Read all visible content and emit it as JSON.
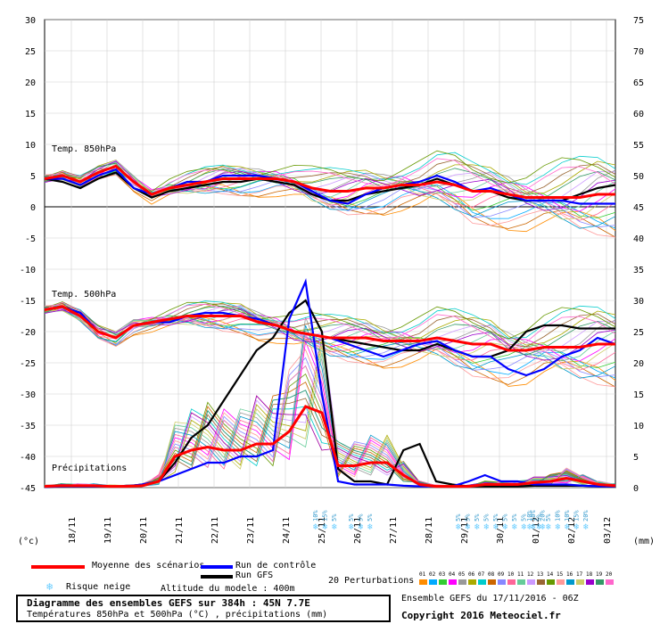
{
  "chart_data": {
    "type": "line",
    "x_dates": [
      "18/11",
      "19/11",
      "20/11",
      "21/11",
      "22/11",
      "23/11",
      "24/11",
      "25/11",
      "26/11",
      "27/11",
      "28/11",
      "29/11",
      "30/11",
      "01/12",
      "02/12",
      "03/12"
    ],
    "left_axis_unit": "(°c)",
    "right_axis_unit": "(mm)",
    "left_ticks": [
      30,
      25,
      20,
      15,
      10,
      5,
      0,
      -5,
      -10,
      -15,
      -20,
      -25,
      -30,
      -35,
      -40,
      -45
    ],
    "right_ticks": [
      75,
      70,
      65,
      60,
      55,
      50,
      45,
      40,
      35,
      30,
      25,
      20,
      15,
      10,
      5,
      0
    ],
    "ylim_temp": [
      -45,
      30
    ],
    "ylim_precip": [
      0,
      75
    ],
    "panel_labels": {
      "t850": "Temp. 850hPa",
      "t500": "Temp. 500hPa",
      "precip": "Précipitations"
    },
    "x_hours": [
      0,
      12,
      24,
      36,
      48,
      60,
      72,
      84,
      96,
      108,
      120,
      132,
      144,
      156,
      168,
      180,
      192,
      204,
      216,
      228,
      240,
      252,
      264,
      276,
      288,
      300,
      312,
      324,
      336,
      348,
      360,
      372,
      384
    ],
    "series": [
      {
        "name": "Moyenne des scénarios",
        "color": "#ff0000",
        "role": "mean",
        "t850": [
          4.5,
          5,
          4,
          5.5,
          6.5,
          4,
          2,
          3,
          3.5,
          4,
          4.5,
          4.5,
          4.5,
          4.5,
          4,
          3,
          2.5,
          2.5,
          3,
          3,
          3.5,
          3.5,
          4,
          3.5,
          2.5,
          2.5,
          2,
          1.5,
          1.5,
          1.5,
          1.5,
          2,
          2
        ],
        "t500": [
          -16.5,
          -16,
          -17.5,
          -20,
          -21,
          -19,
          -18.5,
          -18,
          -17.5,
          -17.5,
          -17.5,
          -17.5,
          -18.5,
          -19,
          -20,
          -20.5,
          -21,
          -21,
          -21,
          -21.5,
          -21.5,
          -21.5,
          -21,
          -21.5,
          -22,
          -22,
          -23,
          -23,
          -22.5,
          -22.5,
          -22.5,
          -22,
          -22
        ],
        "precip": [
          0.2,
          0.3,
          0.3,
          0.3,
          0.2,
          0.2,
          0.3,
          1,
          5,
          6,
          6.5,
          6,
          6,
          7,
          7,
          9,
          13,
          12,
          3.5,
          3.5,
          4,
          4,
          2,
          0.5,
          0.2,
          0.2,
          0.2,
          0.5,
          0.5,
          0.5,
          0.8,
          1,
          1.5,
          1,
          0.5,
          0.3
        ]
      },
      {
        "name": "Run de contrôle",
        "color": "#0000ff",
        "role": "control",
        "t850": [
          4.5,
          4.5,
          3.5,
          5,
          6,
          3,
          2,
          3,
          4,
          4,
          5,
          5,
          5,
          4.5,
          4,
          2.5,
          1,
          0.5,
          2,
          3,
          3.5,
          4,
          5,
          4,
          2.5,
          3,
          2,
          1,
          1,
          1,
          0.5,
          0.5,
          0.5
        ],
        "t500": [
          -16.5,
          -16,
          -17,
          -20,
          -21,
          -19,
          -18.5,
          -18.5,
          -17.5,
          -17,
          -17,
          -17.5,
          -18,
          -19,
          -20,
          -20.5,
          -21,
          -22,
          -23,
          -24,
          -23,
          -22,
          -21.5,
          -23,
          -24,
          -24,
          -26,
          -27,
          -26,
          -24,
          -23,
          -21,
          -22
        ],
        "precip": [
          0.1,
          0.2,
          0.2,
          0.2,
          0.2,
          0.2,
          0.5,
          1,
          2,
          3,
          4,
          4,
          5,
          5,
          6,
          27,
          33,
          15,
          1,
          0.5,
          0.5,
          0.5,
          0.3,
          0.2,
          0.2,
          0.2,
          1,
          2,
          1,
          1,
          0.5,
          0.5,
          0.5,
          0.3,
          0.2,
          0.2
        ]
      },
      {
        "name": "Run GFS",
        "color": "#000000",
        "role": "gfs",
        "t850": [
          4.5,
          4,
          3,
          4.5,
          5.5,
          3,
          1.5,
          2.5,
          3,
          3.5,
          4,
          4,
          4.5,
          4,
          3.5,
          2,
          1,
          1,
          2,
          2.5,
          3,
          3.5,
          4.5,
          3.5,
          2.5,
          2.5,
          1.5,
          1,
          1,
          1,
          2,
          3,
          3.5
        ],
        "t500": [
          -16.5,
          -16,
          -17,
          -20,
          -21,
          -19,
          -18.5,
          -18,
          -17.5,
          -17.5,
          -17.5,
          -17.5,
          -18.5,
          -19,
          -20,
          -20.5,
          -21,
          -21.5,
          -22,
          -22.5,
          -23,
          -23,
          -22,
          -23,
          -24,
          -24,
          -23,
          -20,
          -19,
          -19,
          -19.5,
          -19.5,
          -19.5
        ],
        "precip": [
          0.1,
          0.2,
          0.2,
          0.2,
          0.2,
          0.2,
          0.5,
          1,
          4,
          8,
          10,
          14,
          18,
          22,
          24,
          28,
          30,
          25,
          3,
          1,
          1,
          0.5,
          6,
          7,
          1,
          0.5,
          0.2,
          0.2,
          0.2,
          0.2,
          0.3,
          0.3,
          0.3,
          0.3,
          0.2,
          0.2
        ]
      }
    ],
    "perturbation_colors": [
      "#ff8c00",
      "#00aaff",
      "#33cc33",
      "#ff00ff",
      "#999999",
      "#aaaa00",
      "#00cccc",
      "#cc6600",
      "#8888ff",
      "#ff6699",
      "#66cc99",
      "#cc99ff",
      "#996633",
      "#669900",
      "#ff9999",
      "#0099cc",
      "#cccc66",
      "#9900cc",
      "#339966",
      "#ff66cc"
    ],
    "snow_risk": [
      {
        "date_index": 7,
        "values": [
          "10%",
          "15%",
          "5%"
        ]
      },
      {
        "date_index": 8,
        "values": [
          "5%",
          "5%",
          "5%"
        ]
      },
      {
        "date_index": 11,
        "values": [
          "5%",
          "5%",
          "5%",
          "5%",
          "5%",
          "5%",
          "5%",
          "5%",
          "10%",
          "20%"
        ]
      },
      {
        "date_index": 13,
        "values": [
          "10%",
          "5%",
          "5%",
          "10%",
          "10%",
          "15%",
          "20%"
        ]
      }
    ],
    "grid": true
  },
  "legend": {
    "mean": "Moyenne des scénarios",
    "control": "Run de contrôle",
    "gfs": "Run GFS",
    "snow": "Risque neige",
    "altitude": "Altitude du modele : 400m",
    "perturbations": "20 Perturbations",
    "pert_numbers": [
      "01",
      "02",
      "03",
      "04",
      "05",
      "06",
      "07",
      "08",
      "09",
      "10",
      "11",
      "12",
      "13",
      "14",
      "15",
      "16",
      "17",
      "18",
      "19",
      "20"
    ]
  },
  "footer": {
    "title": "Diagramme des ensembles GEFS sur 384h : 45N 7.7E",
    "subtitle": "Températures 850hPa et 500hPa (°C) , précipitations (mm)",
    "run": "Ensemble GEFS du 17/11/2016 - 06Z",
    "copyright": "Copyright 2016 Meteociel.fr"
  },
  "colors": {
    "mean": "#ff0000",
    "control": "#0000ff",
    "gfs": "#000000",
    "snow": "#66ccff"
  }
}
